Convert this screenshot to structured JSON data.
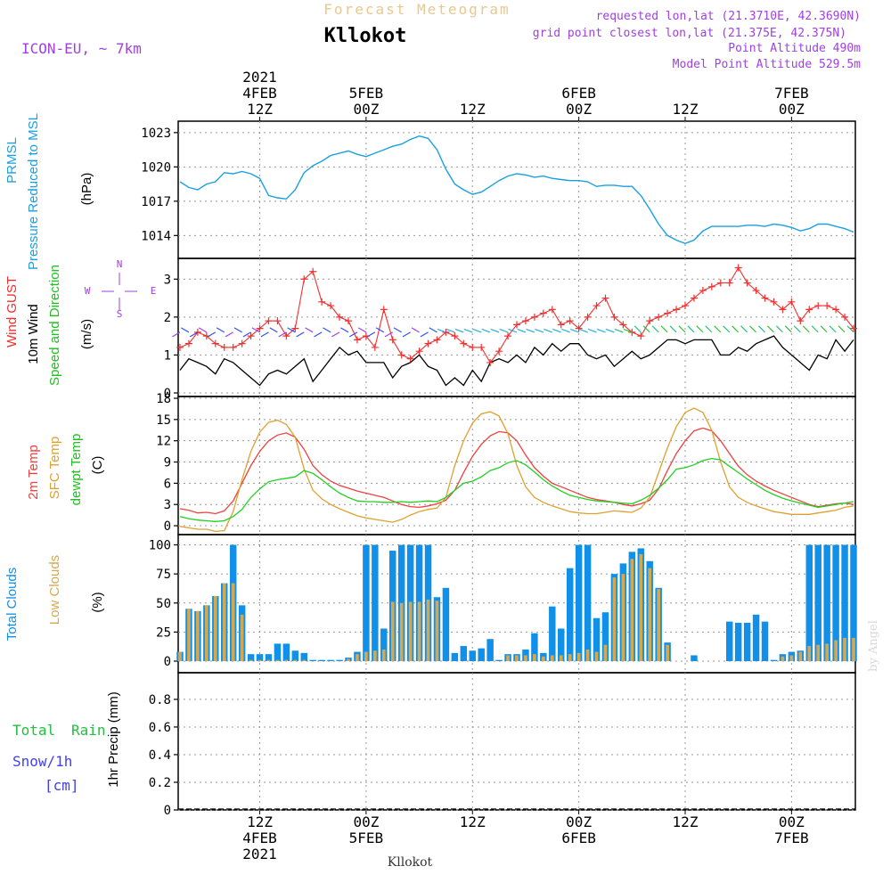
{
  "header": {
    "title": "Forecast Meteogram",
    "location": "Kllokot",
    "model": "ICON-EU, ~ 7km",
    "requested": "requested lon,lat (21.3710E, 42.3690N)",
    "gridpoint": "grid point closest lon,lat (21.375E, 42.375N)",
    "altitude": "Point Altitude 490m",
    "model_altitude": "Model Point Altitude 529.5m",
    "footer_location": "Kllokot",
    "credit": "by Angel"
  },
  "time_axis": {
    "top_labels": [
      {
        "line1": "2021",
        "line2": "4FEB",
        "line3": "12Z",
        "t": 9
      },
      {
        "line1": "",
        "line2": "5FEB",
        "line3": "00Z",
        "t": 21
      },
      {
        "line1": "",
        "line2": "",
        "line3": "12Z",
        "t": 33
      },
      {
        "line1": "",
        "line2": "6FEB",
        "line3": "00Z",
        "t": 45
      },
      {
        "line1": "",
        "line2": "",
        "line3": "12Z",
        "t": 57
      },
      {
        "line1": "",
        "line2": "7FEB",
        "line3": "00Z",
        "t": 69
      }
    ],
    "bottom_labels": [
      {
        "line1": "12Z",
        "line2": "4FEB",
        "line3": "2021",
        "t": 9
      },
      {
        "line1": "00Z",
        "line2": "5FEB",
        "line3": "",
        "t": 21
      },
      {
        "line1": "12Z",
        "line2": "",
        "line3": "",
        "t": 33
      },
      {
        "line1": "00Z",
        "line2": "6FEB",
        "line3": "",
        "t": 45
      },
      {
        "line1": "12Z",
        "line2": "",
        "line3": "",
        "t": 57
      },
      {
        "line1": "00Z",
        "line2": "7FEB",
        "line3": "",
        "t": 69
      }
    ]
  },
  "panels": {
    "pressure": {
      "labels": [
        "PRMSL",
        "Pressure Reduced to MSL",
        "(hPa)"
      ],
      "ticks": [
        "1014",
        "1017",
        "1020",
        "1023"
      ]
    },
    "wind": {
      "labels": [
        "Wind GUST",
        "10m Wind",
        "Speed and Direction",
        "(m/s)"
      ],
      "ticks": [
        "0",
        "1",
        "2",
        "3"
      ],
      "compass": {
        "n": "N",
        "s": "S",
        "w": "W",
        "e": "E"
      }
    },
    "temp": {
      "labels": [
        "2m Temp",
        "SFC Temp",
        "dewpt Temp",
        "(C)"
      ],
      "ticks": [
        "0",
        "3",
        "6",
        "9",
        "12",
        "15",
        "18"
      ]
    },
    "clouds": {
      "labels": [
        "Total Clouds",
        "Low Clouds",
        "(%)"
      ],
      "ticks": [
        "0",
        "25",
        "50",
        "75",
        "100"
      ]
    },
    "precip": {
      "labels": [
        "Total",
        "Rain",
        "Snow/1h",
        "[cm]",
        "1hr Precip (mm)"
      ],
      "ticks": [
        "0",
        "0.2",
        "0.4",
        "0.6",
        "0.8"
      ]
    }
  },
  "colors": {
    "pressure": "#1aa0e0",
    "gust": "#f03030",
    "wind": "#000000",
    "t2m": "#f04040",
    "sfc": "#e0a030",
    "dew": "#20d020",
    "total_cloud": "#1090e8",
    "low_cloud": "#d4a850",
    "purple": "#a040e0",
    "green_text": "#20c040",
    "snow_text": "#4040f0"
  },
  "chart_data": [
    {
      "type": "line",
      "name": "PRMSL",
      "ylabel": "(hPa)",
      "ylim": [
        1012,
        1024
      ],
      "x": [
        0,
        1,
        2,
        3,
        4,
        5,
        6,
        7,
        8,
        9,
        10,
        11,
        12,
        13,
        14,
        15,
        16,
        17,
        18,
        19,
        20,
        21,
        22,
        23,
        24,
        25,
        26,
        27,
        28,
        29,
        30,
        31,
        32,
        33,
        34,
        35,
        36,
        37,
        38,
        39,
        40,
        41,
        42,
        43,
        44,
        45,
        46,
        47,
        48,
        49,
        50,
        51,
        52,
        53,
        54,
        55,
        56,
        57,
        58,
        59,
        60,
        61,
        62,
        63,
        64,
        65,
        66,
        67,
        68,
        69,
        70,
        71,
        72,
        73,
        74,
        75,
        76
      ],
      "values": [
        1018.7,
        1018.2,
        1018.0,
        1018.5,
        1018.7,
        1019.5,
        1019.4,
        1019.6,
        1019.4,
        1019.0,
        1017.5,
        1017.3,
        1017.2,
        1018.0,
        1019.5,
        1020.1,
        1020.5,
        1021.0,
        1021.2,
        1021.4,
        1021.1,
        1020.9,
        1021.2,
        1021.5,
        1021.8,
        1022.0,
        1022.4,
        1022.7,
        1022.5,
        1021.5,
        1019.8,
        1018.5,
        1018.0,
        1017.6,
        1017.8,
        1018.3,
        1018.8,
        1019.2,
        1019.4,
        1019.3,
        1019.1,
        1019.2,
        1019.0,
        1018.9,
        1018.8,
        1018.8,
        1018.7,
        1018.3,
        1018.4,
        1018.4,
        1018.3,
        1018.3,
        1017.5,
        1016.3,
        1015.0,
        1014.0,
        1013.6,
        1013.3,
        1013.6,
        1014.4,
        1014.8,
        1014.8,
        1014.8,
        1014.8,
        1014.9,
        1014.9,
        1014.8,
        1015.0,
        1014.9,
        1014.7,
        1014.4,
        1014.6,
        1015.0,
        1015.0,
        1014.8,
        1014.6,
        1014.3
      ]
    },
    {
      "type": "line",
      "name": "Wind GUST",
      "ylabel": "(m/s)",
      "ylim": [
        0,
        3.5
      ],
      "x": [
        0,
        1,
        2,
        3,
        4,
        5,
        6,
        7,
        8,
        9,
        10,
        11,
        12,
        13,
        14,
        15,
        16,
        17,
        18,
        19,
        20,
        21,
        22,
        23,
        24,
        25,
        26,
        27,
        28,
        29,
        30,
        31,
        32,
        33,
        34,
        35,
        36,
        37,
        38,
        39,
        40,
        41,
        42,
        43,
        44,
        45,
        46,
        47,
        48,
        49,
        50,
        51,
        52,
        53,
        54,
        55,
        56,
        57,
        58,
        59,
        60,
        61,
        62,
        63,
        64,
        65,
        66,
        67,
        68,
        69,
        70,
        71,
        72,
        73,
        74,
        75,
        76
      ],
      "values": [
        1.2,
        1.3,
        1.6,
        1.5,
        1.3,
        1.2,
        1.2,
        1.3,
        1.5,
        1.7,
        1.9,
        1.9,
        1.5,
        1.7,
        3.0,
        3.2,
        2.4,
        2.3,
        2.0,
        1.9,
        1.4,
        1.5,
        1.2,
        2.2,
        1.4,
        1.0,
        0.9,
        1.1,
        1.3,
        1.4,
        1.6,
        1.5,
        1.3,
        1.2,
        1.2,
        0.8,
        1.1,
        1.5,
        1.8,
        1.9,
        2.0,
        2.1,
        2.2,
        1.8,
        1.9,
        1.7,
        2.0,
        2.3,
        2.5,
        2.0,
        1.8,
        1.6,
        1.5,
        1.9,
        2.0,
        2.1,
        2.2,
        2.3,
        2.5,
        2.7,
        2.8,
        2.9,
        2.9,
        3.3,
        2.9,
        2.7,
        2.5,
        2.4,
        2.2,
        2.4,
        1.9,
        2.2,
        2.3,
        2.3,
        2.2,
        2.0,
        1.7
      ],
      "note_values": [],
      "series": []
    },
    {
      "type": "line",
      "name": "10m Wind",
      "ylabel": "(m/s)",
      "ylim": [
        0,
        3.5
      ],
      "x": [
        0,
        1,
        2,
        3,
        4,
        5,
        6,
        7,
        8,
        9,
        10,
        11,
        12,
        13,
        14,
        15,
        16,
        17,
        18,
        19,
        20,
        21,
        22,
        23,
        24,
        25,
        26,
        27,
        28,
        29,
        30,
        31,
        32,
        33,
        34,
        35,
        36,
        37,
        38,
        39,
        40,
        41,
        42,
        43,
        44,
        45,
        46,
        47,
        48,
        49,
        50,
        51,
        52,
        53,
        54,
        55,
        56,
        57,
        58,
        59,
        60,
        61,
        62,
        63,
        64,
        65,
        66,
        67,
        68,
        69,
        70,
        71,
        72,
        73,
        74,
        75,
        76
      ],
      "values": [
        0.6,
        0.9,
        0.8,
        0.7,
        0.5,
        0.9,
        0.8,
        0.6,
        0.4,
        0.2,
        0.5,
        0.6,
        0.5,
        0.7,
        0.9,
        0.3,
        0.6,
        0.9,
        1.2,
        1.0,
        1.1,
        0.8,
        0.8,
        0.8,
        0.4,
        0.7,
        0.8,
        1.0,
        0.7,
        0.6,
        0.2,
        0.4,
        0.2,
        0.6,
        0.3,
        0.8,
        0.9,
        0.8,
        1.0,
        0.8,
        1.2,
        1.0,
        1.3,
        1.1,
        1.3,
        1.3,
        1.0,
        0.9,
        1.0,
        0.7,
        0.9,
        1.1,
        0.9,
        1.0,
        1.2,
        1.4,
        1.4,
        1.3,
        1.4,
        1.4,
        1.4,
        1.0,
        1.0,
        1.2,
        1.1,
        1.3,
        1.4,
        1.5,
        1.2,
        1.0,
        0.8,
        0.6,
        1.0,
        0.9,
        1.4,
        1.1,
        1.4
      ]
    },
    {
      "type": "line",
      "name": "Temperature",
      "ylabel": "(C)",
      "ylim": [
        -1,
        18
      ],
      "x": [
        0,
        1,
        2,
        3,
        4,
        5,
        6,
        7,
        8,
        9,
        10,
        11,
        12,
        13,
        14,
        15,
        16,
        17,
        18,
        19,
        20,
        21,
        22,
        23,
        24,
        25,
        26,
        27,
        28,
        29,
        30,
        31,
        32,
        33,
        34,
        35,
        36,
        37,
        38,
        39,
        40,
        41,
        42,
        43,
        44,
        45,
        46,
        47,
        48,
        49,
        50,
        51,
        52,
        53,
        54,
        55,
        56,
        57,
        58,
        59,
        60,
        61,
        62,
        63,
        64,
        65,
        66,
        67,
        68,
        69,
        70,
        71,
        72,
        73,
        74,
        75,
        76
      ],
      "series": [
        {
          "name": "2m Temp",
          "values": [
            2.4,
            2.2,
            1.8,
            1.9,
            1.7,
            2.1,
            3.5,
            6.0,
            8.5,
            10.5,
            12.0,
            12.8,
            13.1,
            12.5,
            10.8,
            8.5,
            7.2,
            6.3,
            5.7,
            5.3,
            4.9,
            4.6,
            4.3,
            4.0,
            3.5,
            3.0,
            2.7,
            2.6,
            2.8,
            3.1,
            3.6,
            5.0,
            7.5,
            9.8,
            11.5,
            12.7,
            13.3,
            13.1,
            12.0,
            10.0,
            8.2,
            7.0,
            6.0,
            5.5,
            5.0,
            4.5,
            4.0,
            3.7,
            3.5,
            3.3,
            3.0,
            2.8,
            3.1,
            3.6,
            5.2,
            7.8,
            10.2,
            12.0,
            13.4,
            13.8,
            13.4,
            12.0,
            10.2,
            8.4,
            7.2,
            6.3,
            5.6,
            5.0,
            4.5,
            4.0,
            3.5,
            3.0,
            2.7,
            2.9,
            3.1,
            3.2,
            3.0
          ]
        },
        {
          "name": "SFC Temp",
          "values": [
            -0.1,
            -0.3,
            -0.5,
            -0.5,
            -0.8,
            -0.7,
            2.0,
            6.5,
            10.5,
            13.2,
            14.6,
            14.9,
            14.3,
            12.5,
            8.0,
            5.0,
            3.8,
            3.0,
            2.4,
            1.9,
            1.4,
            1.1,
            0.9,
            0.7,
            0.5,
            0.9,
            1.5,
            2.0,
            2.3,
            2.5,
            4.0,
            8.5,
            12.0,
            14.5,
            15.8,
            16.1,
            15.5,
            13.0,
            8.5,
            5.5,
            4.0,
            3.3,
            2.8,
            2.4,
            2.0,
            1.8,
            1.7,
            1.7,
            1.9,
            2.1,
            2.0,
            1.9,
            2.5,
            4.0,
            7.5,
            11.0,
            14.0,
            16.0,
            16.6,
            16.0,
            13.5,
            9.0,
            5.5,
            4.0,
            3.3,
            2.8,
            2.4,
            2.0,
            1.8,
            1.6,
            1.6,
            1.6,
            1.8,
            2.0,
            2.2,
            2.6,
            2.8
          ]
        },
        {
          "name": "dewpt Temp",
          "values": [
            1.3,
            1.0,
            0.8,
            0.7,
            0.6,
            0.7,
            1.3,
            2.3,
            4.0,
            5.2,
            6.2,
            6.5,
            6.7,
            6.9,
            7.8,
            7.4,
            6.5,
            5.5,
            4.6,
            4.0,
            3.5,
            3.4,
            3.4,
            3.3,
            3.3,
            3.4,
            3.3,
            3.4,
            3.5,
            3.4,
            4.0,
            5.0,
            6.0,
            6.3,
            6.9,
            7.8,
            8.2,
            8.9,
            9.2,
            8.6,
            7.6,
            6.5,
            5.6,
            4.9,
            4.3,
            4.0,
            3.7,
            3.5,
            3.4,
            3.3,
            3.2,
            3.1,
            3.6,
            4.3,
            5.3,
            6.5,
            8.0,
            8.2,
            8.6,
            9.2,
            9.5,
            9.3,
            8.4,
            7.5,
            6.6,
            5.8,
            5.0,
            4.4,
            3.9,
            3.5,
            3.2,
            2.9,
            2.6,
            2.8,
            3.0,
            3.2,
            3.4
          ]
        }
      ]
    },
    {
      "type": "bar",
      "name": "Clouds",
      "ylabel": "(%)",
      "ylim": [
        0,
        105
      ],
      "x": [
        0,
        1,
        2,
        3,
        4,
        5,
        6,
        7,
        8,
        9,
        10,
        11,
        12,
        13,
        14,
        15,
        16,
        17,
        18,
        19,
        20,
        21,
        22,
        23,
        24,
        25,
        26,
        27,
        28,
        29,
        30,
        31,
        32,
        33,
        34,
        35,
        36,
        37,
        38,
        39,
        40,
        41,
        42,
        43,
        44,
        45,
        46,
        47,
        48,
        49,
        50,
        51,
        52,
        53,
        54,
        55,
        56,
        57,
        58,
        59,
        60,
        61,
        62,
        63,
        64,
        65,
        66,
        67,
        68,
        69,
        70,
        71,
        72,
        73,
        74,
        75,
        76
      ],
      "series": [
        {
          "name": "Total Clouds",
          "values": [
            8,
            45,
            43,
            48,
            56,
            67,
            100,
            48,
            6,
            6,
            6,
            15,
            15,
            9,
            7,
            1,
            1,
            1,
            1,
            3,
            8,
            100,
            100,
            28,
            95,
            100,
            100,
            100,
            100,
            55,
            63,
            7,
            13,
            9,
            11,
            19,
            1,
            6,
            6,
            10,
            24,
            7,
            47,
            28,
            80,
            100,
            100,
            37,
            42,
            75,
            84,
            94,
            97,
            86,
            63,
            16,
            0,
            0,
            5,
            0,
            0,
            0,
            34,
            33,
            33,
            40,
            34,
            1,
            6,
            8,
            9,
            100,
            100,
            100,
            100,
            100,
            100
          ]
        },
        {
          "name": "Low Clouds",
          "values": [
            8,
            45,
            43,
            48,
            56,
            67,
            67,
            40,
            1,
            1,
            1,
            1,
            1,
            1,
            1,
            0,
            0,
            0,
            0,
            2,
            6,
            8,
            9,
            10,
            51,
            50,
            51,
            51,
            53,
            52,
            0,
            0,
            0,
            0,
            0,
            0,
            0,
            5,
            5,
            5,
            6,
            4,
            5,
            5,
            6,
            7,
            10,
            8,
            14,
            72,
            75,
            88,
            92,
            80,
            62,
            14,
            0,
            0,
            0,
            0,
            0,
            0,
            0,
            0,
            0,
            0,
            0,
            0,
            4,
            5,
            8,
            13,
            14,
            15,
            18,
            20,
            20
          ]
        }
      ]
    },
    {
      "type": "bar",
      "name": "1hr Precip",
      "ylabel": "1hr Precip (mm)",
      "ylim": [
        0,
        1
      ],
      "x": [],
      "series": [
        {
          "name": "Total Rain",
          "values": []
        },
        {
          "name": "Snow/1h",
          "values": []
        }
      ]
    }
  ]
}
